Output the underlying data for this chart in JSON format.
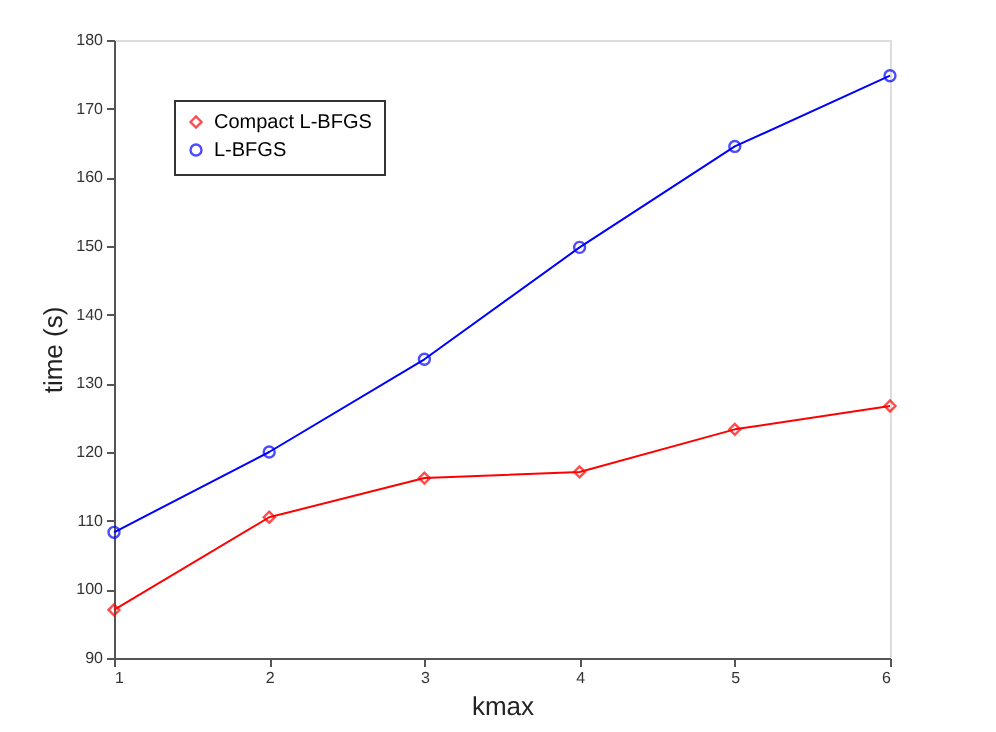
{
  "chart_data": {
    "type": "line",
    "xlabel": "kmax",
    "ylabel": "time (s)",
    "x": [
      1,
      2,
      3,
      4,
      5,
      6
    ],
    "series": [
      {
        "name": "Compact L-BFGS",
        "color": "#ff0000",
        "marker": "diamond",
        "values": [
          97,
          110.5,
          116.2,
          117.1,
          123.3,
          126.7
        ]
      },
      {
        "name": "L-BFGS",
        "color": "#0000ff",
        "marker": "circle",
        "values": [
          108.3,
          120,
          133.5,
          149.8,
          164.5,
          174.8
        ]
      }
    ],
    "xlim": [
      1,
      6
    ],
    "xticks": [
      1,
      2,
      3,
      4,
      5,
      6
    ],
    "ylim": [
      90,
      180
    ],
    "yticks": [
      90,
      100,
      110,
      120,
      130,
      140,
      150,
      160,
      170,
      180
    ],
    "grid": false,
    "legend": "top left",
    "line_style": "solid"
  }
}
